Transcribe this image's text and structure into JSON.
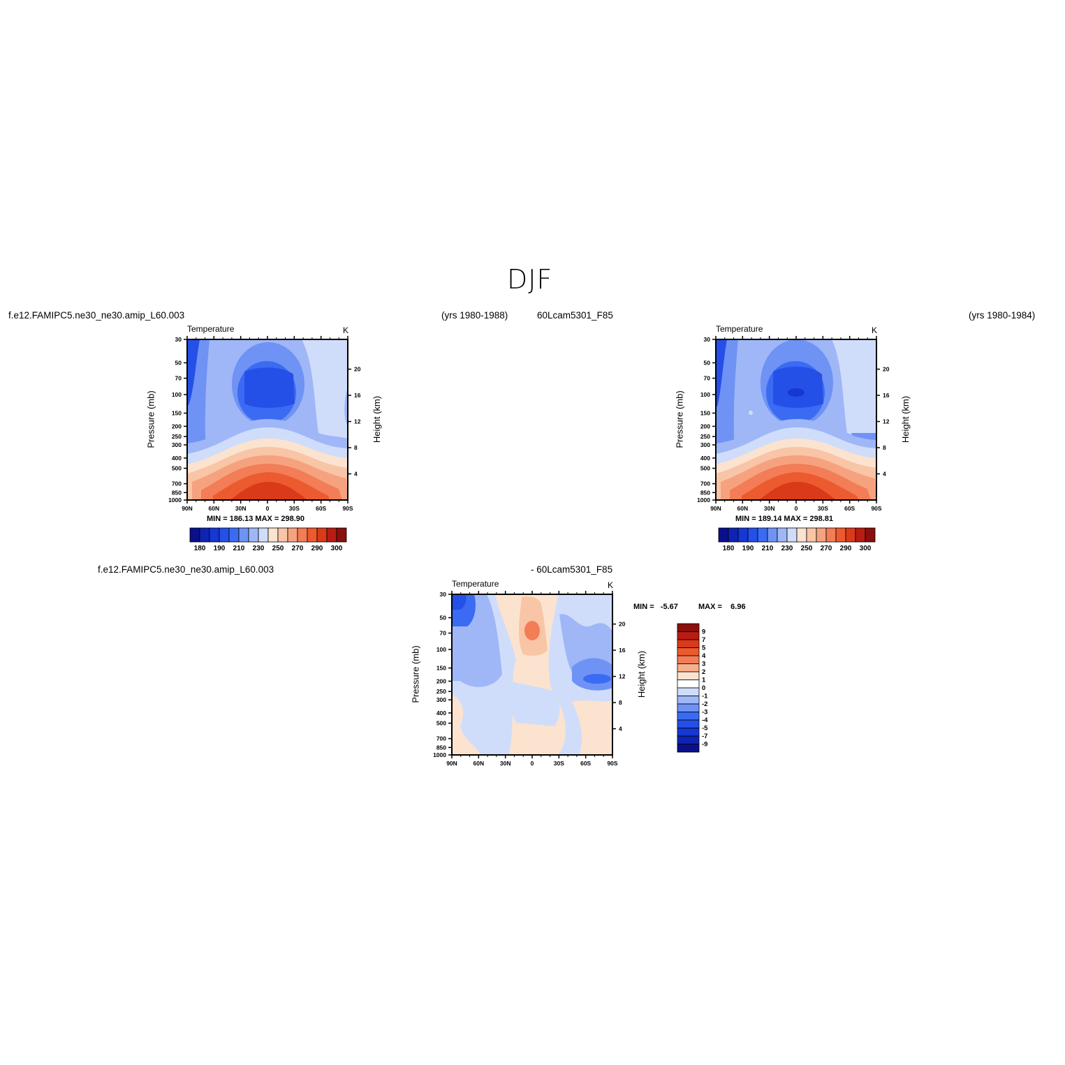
{
  "page": {
    "title": "DJF",
    "left_case": "f.e12.FAMIPC5.ne30_ne30.amip_L60.003",
    "left_years": "(yrs 1980-1988)",
    "right_case": "60Lcam5301_F85",
    "right_years": "(yrs 1980-1984)",
    "diff_case_a": "f.e12.FAMIPC5.ne30_ne30.amip_L60.003",
    "diff_case_b": "- 60Lcam5301_F85"
  },
  "panels": [
    {
      "id": "panel1",
      "variable": "Temperature",
      "units": "K",
      "ylabel_left": "Pressure (mb)",
      "ylabel_right": "Height (km)",
      "stats": "MIN = 186.13   MAX = 298.90",
      "pressure_ticks": [
        "30",
        "50",
        "70",
        "100",
        "150",
        "200",
        "250",
        "300",
        "400",
        "500",
        "700",
        "850",
        "1000"
      ],
      "height_ticks": [
        "20",
        "16",
        "12",
        "8",
        "4"
      ],
      "lat_ticks": [
        "90N",
        "60N",
        "30N",
        "0",
        "30S",
        "60S",
        "90S"
      ],
      "colorbar_labels": [
        "180",
        "190",
        "210",
        "230",
        "250",
        "270",
        "290",
        "300"
      ]
    },
    {
      "id": "panel2",
      "variable": "Temperature",
      "units": "K",
      "ylabel_left": "Pressure (mb)",
      "ylabel_right": "Height (km)",
      "stats": "MIN = 189.14   MAX = 298.81",
      "pressure_ticks": [
        "30",
        "50",
        "70",
        "100",
        "150",
        "200",
        "250",
        "300",
        "400",
        "500",
        "700",
        "850",
        "1000"
      ],
      "height_ticks": [
        "20",
        "16",
        "12",
        "8",
        "4"
      ],
      "lat_ticks": [
        "90N",
        "60N",
        "30N",
        "0",
        "30S",
        "60S",
        "90S"
      ],
      "colorbar_labels": [
        "180",
        "190",
        "210",
        "230",
        "250",
        "270",
        "290",
        "300"
      ]
    },
    {
      "id": "panel3",
      "variable": "Temperature",
      "units": "K",
      "ylabel_left": "Pressure (mb)",
      "ylabel_right": "Height (km)",
      "stats_min": "MIN =   -5.67",
      "stats_max": "MAX =    6.96",
      "pressure_ticks": [
        "30",
        "50",
        "70",
        "100",
        "150",
        "200",
        "250",
        "300",
        "400",
        "500",
        "700",
        "850",
        "1000"
      ],
      "height_ticks": [
        "20",
        "16",
        "12",
        "8",
        "4"
      ],
      "lat_ticks": [
        "90N",
        "60N",
        "30N",
        "0",
        "30S",
        "60S",
        "90S"
      ],
      "colorbar_labels": [
        "9",
        "7",
        "5",
        "4",
        "3",
        "2",
        "1",
        "0",
        "-1",
        "-2",
        "-3",
        "-4",
        "-5",
        "-7",
        "-9"
      ]
    }
  ],
  "chart_data": [
    {
      "type": "heatmap",
      "title": "Temperature",
      "units": "K",
      "xlabel": "",
      "ylabel": "Pressure (mb)",
      "y2label": "Height (km)",
      "x_ticks": [
        "90N",
        "60N",
        "30N",
        "0",
        "30S",
        "60S",
        "90S"
      ],
      "y_ticks": [
        30,
        50,
        70,
        100,
        150,
        200,
        250,
        300,
        400,
        500,
        700,
        850,
        1000
      ],
      "y_scale": "log",
      "min": 186.13,
      "max": 298.9,
      "levels": [
        180,
        185,
        190,
        200,
        210,
        220,
        230,
        240,
        250,
        260,
        270,
        280,
        290,
        295,
        300
      ],
      "description_cells": "zonal-mean DJF temperature; cold tropical tropopause (~190 K near 100 mb), warm surface (~295 K near equator)"
    },
    {
      "type": "heatmap",
      "title": "Temperature",
      "units": "K",
      "xlabel": "",
      "ylabel": "Pressure (mb)",
      "y2label": "Height (km)",
      "x_ticks": [
        "90N",
        "60N",
        "30N",
        "0",
        "30S",
        "60S",
        "90S"
      ],
      "y_ticks": [
        30,
        50,
        70,
        100,
        150,
        200,
        250,
        300,
        400,
        500,
        700,
        850,
        1000
      ],
      "y_scale": "log",
      "min": 189.14,
      "max": 298.81,
      "levels": [
        180,
        185,
        190,
        200,
        210,
        220,
        230,
        240,
        250,
        260,
        270,
        280,
        290,
        295,
        300
      ]
    },
    {
      "type": "heatmap",
      "title": "Temperature",
      "units": "K",
      "xlabel": "",
      "ylabel": "Pressure (mb)",
      "y2label": "Height (km)",
      "x_ticks": [
        "90N",
        "60N",
        "30N",
        "0",
        "30S",
        "60S",
        "90S"
      ],
      "y_ticks": [
        30,
        50,
        70,
        100,
        150,
        200,
        250,
        300,
        400,
        500,
        700,
        850,
        1000
      ],
      "y_scale": "log",
      "min": -5.67,
      "max": 6.96,
      "levels": [
        -9,
        -7,
        -5,
        -4,
        -3,
        -2,
        -1,
        0,
        1,
        2,
        3,
        4,
        5,
        7,
        9
      ]
    }
  ],
  "colors": {
    "temp_scale": [
      "#0a0f8c",
      "#0d24b3",
      "#1637d4",
      "#2450e8",
      "#3b6bf2",
      "#6f92f5",
      "#9fb7f7",
      "#cfddfb",
      "#fbe3cf",
      "#f8c5a6",
      "#f6a27f",
      "#f27d56",
      "#ec5a2f",
      "#d93a1a",
      "#b81c12",
      "#8a0f0d"
    ],
    "diff_scale": [
      "#8a0f0d",
      "#b81c12",
      "#d93a1a",
      "#ec5a2f",
      "#f27d56",
      "#f8b08b",
      "#fbe3cf",
      "#ffffff",
      "#cfddfb",
      "#9fb7f7",
      "#6f92f5",
      "#3b6bf2",
      "#2450e8",
      "#1637d4",
      "#0d24b3",
      "#0a0f8c"
    ]
  }
}
